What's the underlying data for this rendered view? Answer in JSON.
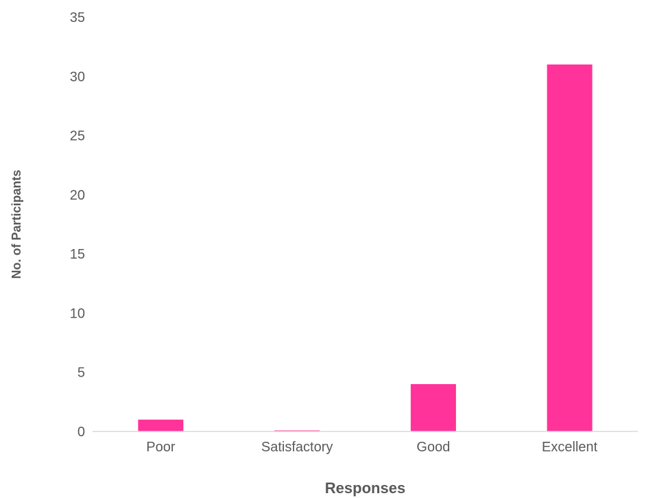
{
  "chart_data": {
    "type": "bar",
    "title": "",
    "xlabel": "Responses",
    "ylabel": "No. of Participants",
    "categories": [
      "Poor",
      "Satisfactory",
      "Good",
      "Excellent"
    ],
    "values": [
      1,
      0,
      4,
      31
    ],
    "ylim": [
      0,
      35
    ],
    "yticks": [
      0,
      5,
      10,
      15,
      20,
      25,
      30,
      35
    ],
    "grid": false,
    "legend": "none",
    "colors": {
      "bar": "#FF3399",
      "axis": "#D9D9D9",
      "text": "#595959"
    }
  }
}
